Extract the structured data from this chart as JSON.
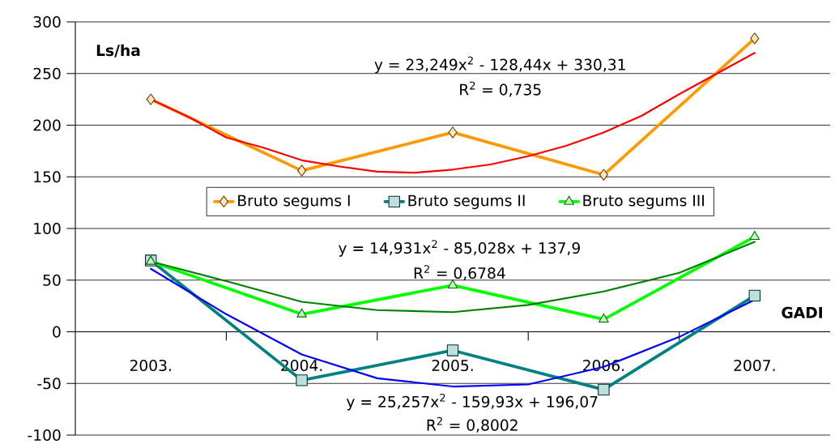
{
  "chart_data": {
    "type": "line",
    "xlabel": "GADI",
    "ylabel": "Ls/ha",
    "x": [
      2003,
      2004,
      2005,
      2006,
      2007
    ],
    "xlim": [
      2002.5,
      2007.5
    ],
    "xticks": [
      {
        "value": 2003,
        "label": "2003."
      },
      {
        "value": 2004,
        "label": "2004."
      },
      {
        "value": 2005,
        "label": "2005."
      },
      {
        "value": 2006,
        "label": "2006."
      },
      {
        "value": 2007,
        "label": "2007."
      },
      {
        "value": 2003.5,
        "label": null
      },
      {
        "value": 2004.5,
        "label": null
      },
      {
        "value": 2005.5,
        "label": null
      },
      {
        "value": 2006.5,
        "label": null
      }
    ],
    "ylim": [
      -100,
      300
    ],
    "yticks": [
      -100,
      -50,
      0,
      50,
      100,
      150,
      200,
      250,
      300
    ],
    "grid": "y",
    "legend": "center",
    "series": [
      {
        "name": "Bruto segums I",
        "color": "#ff9900",
        "marker": "diamond",
        "values": [
          225,
          156,
          193,
          152,
          284
        ]
      },
      {
        "name": "Bruto segums II",
        "color": "#008080",
        "marker": "square",
        "values": [
          69,
          -47,
          -18,
          -56,
          35
        ]
      },
      {
        "name": "Bruto segums III",
        "color": "#00ff00",
        "marker": "triangle",
        "values": [
          68,
          17,
          45,
          12,
          92
        ]
      },
      {
        "type": "line",
        "color": "#ff0000",
        "marker": "none",
        "x": [
          2003,
          2003.25,
          2003.5,
          2003.75,
          2004,
          2004.25,
          2004.5,
          2004.75,
          2005,
          2005.25,
          2005.5,
          2005.75,
          2006,
          2006.25,
          2006.5,
          2006.75,
          2007
        ],
        "values": [
          225,
          208,
          188,
          178,
          166,
          160,
          155,
          154,
          157,
          162,
          170,
          180,
          193,
          209,
          230,
          250,
          270
        ]
      },
      {
        "type": "line",
        "color": "#008000",
        "marker": "none",
        "x": [
          2003,
          2003.5,
          2004,
          2004.5,
          2005,
          2005.5,
          2006,
          2006.5,
          2007
        ],
        "values": [
          68,
          49,
          29,
          21,
          19,
          26,
          39,
          57,
          87
        ]
      },
      {
        "type": "line",
        "color": "#0000ff",
        "marker": "none",
        "x": [
          2003,
          2003.5,
          2004,
          2004.5,
          2005,
          2005.5,
          2006,
          2006.5,
          2007
        ],
        "values": [
          61,
          17,
          -22,
          -45,
          -53,
          -51,
          -34,
          -5,
          31
        ]
      }
    ],
    "annotations": [
      "y = 23,249x$^{2}$ - 128,44x + 330,31",
      "R$^{2}$ = 0,735",
      "y = 14,931x$^{2}$ - 85,028x + 137,9",
      "R$^{2}$ = 0,6784",
      "y = 25,257x$^{2}$ - 159,93x + 196,07",
      "R$^{2}$ = 0,8002"
    ]
  }
}
